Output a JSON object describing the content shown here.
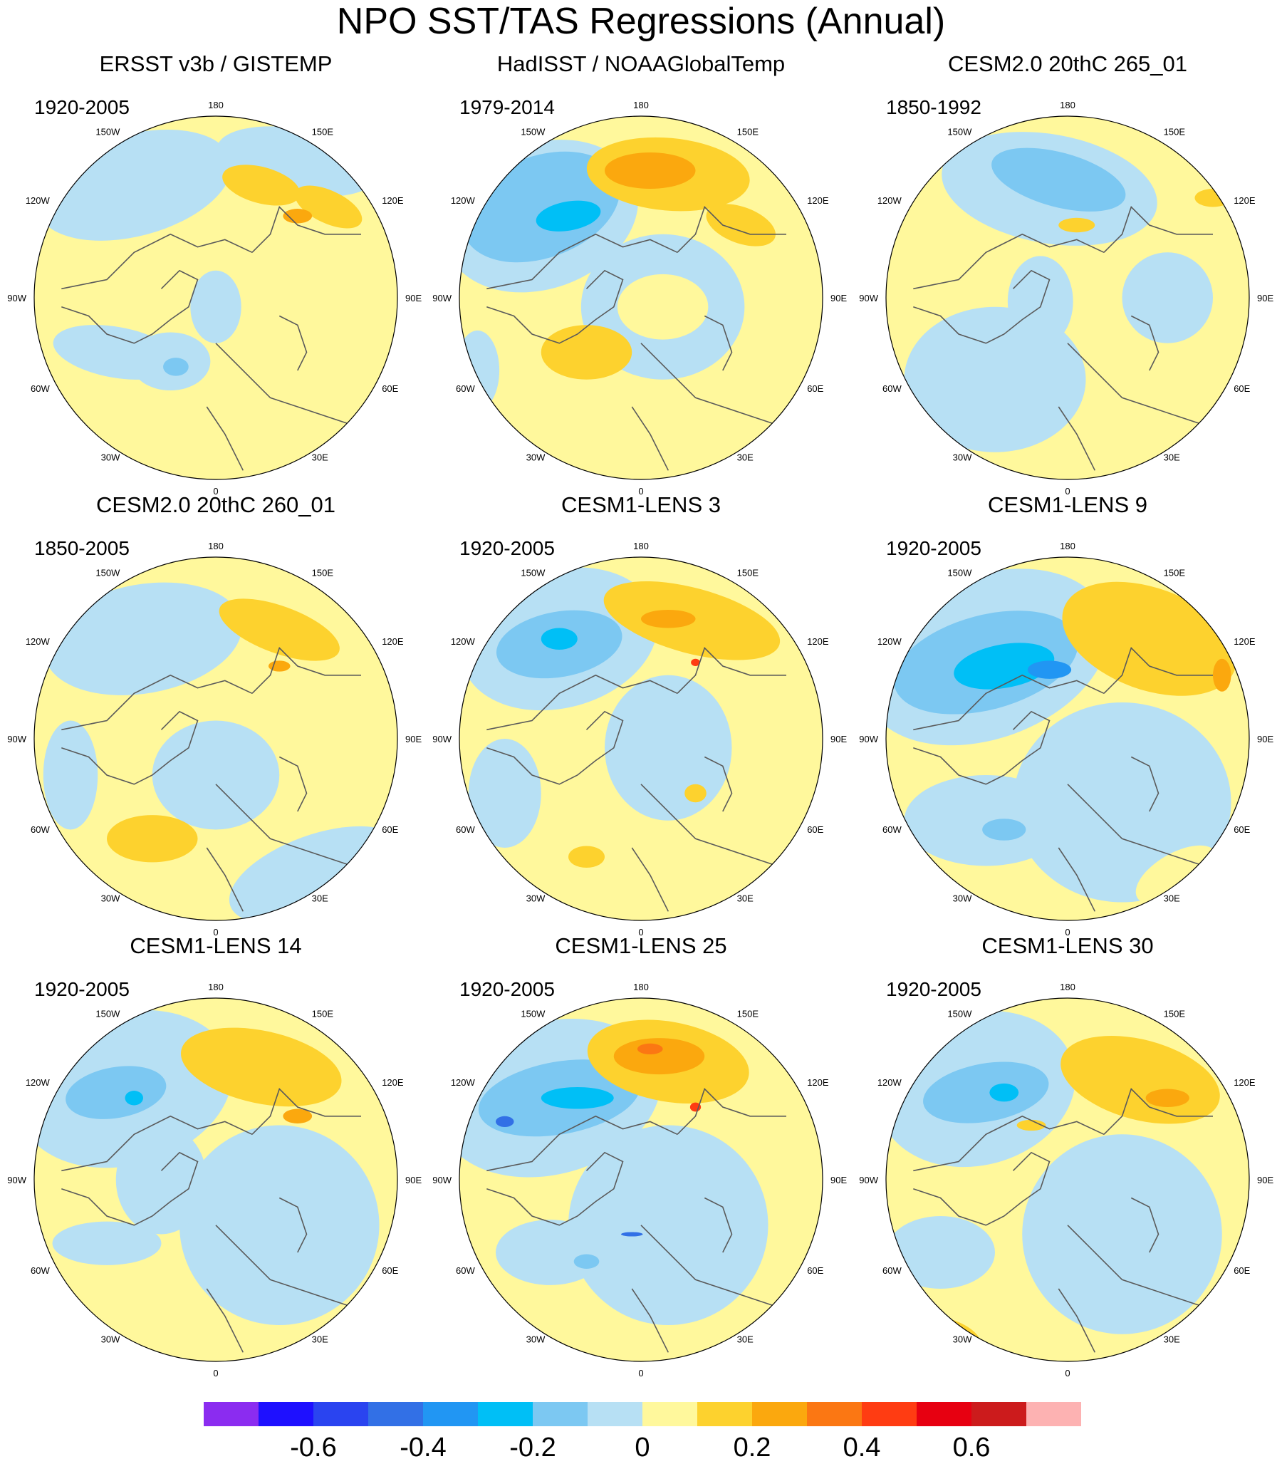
{
  "title": "NPO SST/TAS Regressions (Annual)",
  "panels": [
    {
      "title": "ERSST v3b / GISTEMP",
      "period": "1920-2005",
      "pattern": "weak-ersst"
    },
    {
      "title": "HadISST / NOAAGlobalTemp",
      "period": "1979-2014",
      "pattern": "hadisst"
    },
    {
      "title": "CESM2.0 20thC 265_01",
      "period": "1850-1992",
      "pattern": "cesm2-265"
    },
    {
      "title": "CESM2.0 20thC 260_01",
      "period": "1850-2005",
      "pattern": "cesm2-260"
    },
    {
      "title": "CESM1-LENS 3",
      "period": "1920-2005",
      "pattern": "lens-strong"
    },
    {
      "title": "CESM1-LENS 9",
      "period": "1920-2005",
      "pattern": "lens-9"
    },
    {
      "title": "CESM1-LENS 14",
      "period": "1920-2005",
      "pattern": "lens-14"
    },
    {
      "title": "CESM1-LENS 25",
      "period": "1920-2005",
      "pattern": "lens-25"
    },
    {
      "title": "CESM1-LENS 30",
      "period": "1920-2005",
      "pattern": "lens-30"
    }
  ],
  "longitude_labels": [
    "180",
    "150E",
    "120E",
    "90E",
    "60E",
    "30E",
    "0",
    "30W",
    "60W",
    "90W",
    "120W",
    "150W"
  ],
  "colorbar": {
    "colors": [
      "#8b2cf0",
      "#1e10ff",
      "#2a44f0",
      "#3270e6",
      "#2196f3",
      "#00bff6",
      "#7cc8f2",
      "#b7e0f4",
      "#fff89c",
      "#fdd22e",
      "#fba80e",
      "#fb7713",
      "#ff3c12",
      "#e70011",
      "#cc1b1c",
      "#fdb2b2"
    ],
    "labels": [
      "-0.6",
      "-0.4",
      "-0.2",
      "0",
      "0.2",
      "0.4",
      "0.6"
    ]
  },
  "palette": {
    "land_outline": "#5a5a5a",
    "missing": "#ffffff",
    "border": "#000000"
  }
}
